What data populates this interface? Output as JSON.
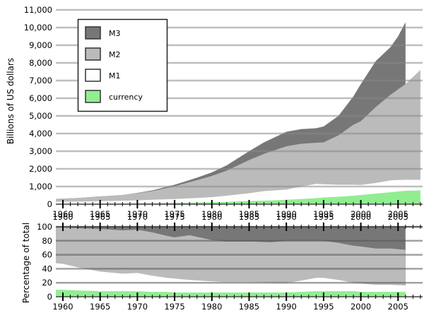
{
  "chart_data": [
    {
      "type": "area",
      "title": "",
      "xlabel": "",
      "ylabel": "Billions of US dollars",
      "ylim": [
        0,
        11000
      ],
      "xlim": [
        1959,
        2008
      ],
      "grid": true,
      "legend_position": "upper-left",
      "y_ticks": [
        "0",
        "1,000",
        "2,000",
        "3,000",
        "4,000",
        "5,000",
        "6,000",
        "7,000",
        "8,000",
        "9,000",
        "10,000",
        "11,000"
      ],
      "x_ticks": [
        "1960",
        "1965",
        "1970",
        "1975",
        "1980",
        "1985",
        "1990",
        "1995",
        "2000",
        "2005"
      ],
      "x": [
        1959,
        1960,
        1962,
        1965,
        1968,
        1970,
        1972,
        1975,
        1978,
        1980,
        1982,
        1985,
        1987,
        1990,
        1992,
        1994,
        1995,
        1997,
        1999,
        2000,
        2002,
        2004,
        2005,
        2006,
        2008
      ],
      "series": [
        {
          "name": "M3",
          "color": "#777777",
          "values": [
            300,
            315,
            350,
            440,
            520,
            640,
            780,
            1100,
            1500,
            1800,
            2200,
            3000,
            3500,
            4100,
            4250,
            4300,
            4400,
            5000,
            6100,
            6800,
            8100,
            8900,
            9500,
            10300,
            null
          ]
        },
        {
          "name": "M2",
          "color": "#bbbbbb",
          "values": [
            300,
            310,
            350,
            440,
            520,
            625,
            740,
            1020,
            1360,
            1600,
            1900,
            2500,
            2850,
            3280,
            3420,
            3480,
            3500,
            3900,
            4500,
            4700,
            5500,
            6200,
            6500,
            6800,
            7600
          ]
        },
        {
          "name": "M1",
          "color": "#ffffff",
          "values": [
            140,
            141,
            150,
            170,
            195,
            215,
            250,
            290,
            350,
            400,
            480,
            620,
            740,
            825,
            1000,
            1150,
            1130,
            1100,
            1100,
            1090,
            1200,
            1350,
            1370,
            1380,
            1380
          ]
        },
        {
          "name": "currency",
          "color": "#90ee90",
          "values": [
            28,
            29,
            31,
            36,
            44,
            50,
            58,
            75,
            95,
            110,
            130,
            180,
            200,
            250,
            290,
            340,
            380,
            420,
            480,
            520,
            600,
            680,
            720,
            760,
            780
          ]
        }
      ]
    },
    {
      "type": "area",
      "title": "",
      "xlabel": "",
      "ylabel": "Percentage of total",
      "ylim": [
        0,
        100
      ],
      "xlim": [
        1959,
        2008
      ],
      "grid": true,
      "y_ticks": [
        "0",
        "20",
        "40",
        "60",
        "80",
        "100"
      ],
      "x_ticks": [
        "1960",
        "1965",
        "1970",
        "1975",
        "1980",
        "1985",
        "1990",
        "1995",
        "2000",
        "2005"
      ],
      "x": [
        1959,
        1960,
        1962,
        1965,
        1968,
        1970,
        1972,
        1974,
        1975,
        1977,
        1980,
        1982,
        1985,
        1988,
        1990,
        1992,
        1994,
        1995,
        1997,
        1999,
        2000,
        2002,
        2004,
        2006
      ],
      "series": [
        {
          "name": "M3",
          "color": "#777777",
          "values": [
            100,
            100,
            100,
            100,
            100,
            100,
            100,
            100,
            100,
            100,
            100,
            100,
            100,
            100,
            100,
            100,
            100,
            100,
            100,
            100,
            100,
            100,
            100,
            100
          ]
        },
        {
          "name": "M2",
          "color": "#bbbbbb",
          "values": [
            100,
            99,
            98,
            97,
            95,
            96,
            92,
            87,
            85,
            88,
            81,
            79,
            79,
            78,
            80,
            80,
            80,
            80,
            77,
            73,
            72,
            69,
            69,
            67
          ]
        },
        {
          "name": "M1",
          "color": "#ffffff",
          "values": [
            48,
            47,
            42,
            36,
            33,
            34,
            30,
            27,
            26,
            24,
            22,
            21,
            21,
            20,
            20,
            23,
            27,
            27,
            24,
            20,
            19,
            17,
            17,
            16
          ]
        },
        {
          "name": "currency",
          "color": "#90ee90",
          "values": [
            10,
            10,
            9,
            8,
            8,
            8,
            7,
            7,
            6,
            6,
            6,
            6,
            6,
            6,
            6,
            7,
            8,
            8,
            8,
            8,
            7,
            7,
            7,
            7
          ]
        }
      ]
    }
  ],
  "legend": {
    "items": [
      {
        "label": "M3",
        "color": "#777777"
      },
      {
        "label": "M2",
        "color": "#bbbbbb"
      },
      {
        "label": "M1",
        "color": "#ffffff"
      },
      {
        "label": "currency",
        "color": "#90ee90"
      }
    ]
  },
  "top_chart": {
    "ylabel": "Billions of US dollars"
  },
  "bottom_chart": {
    "ylabel": "Percentage of total"
  }
}
